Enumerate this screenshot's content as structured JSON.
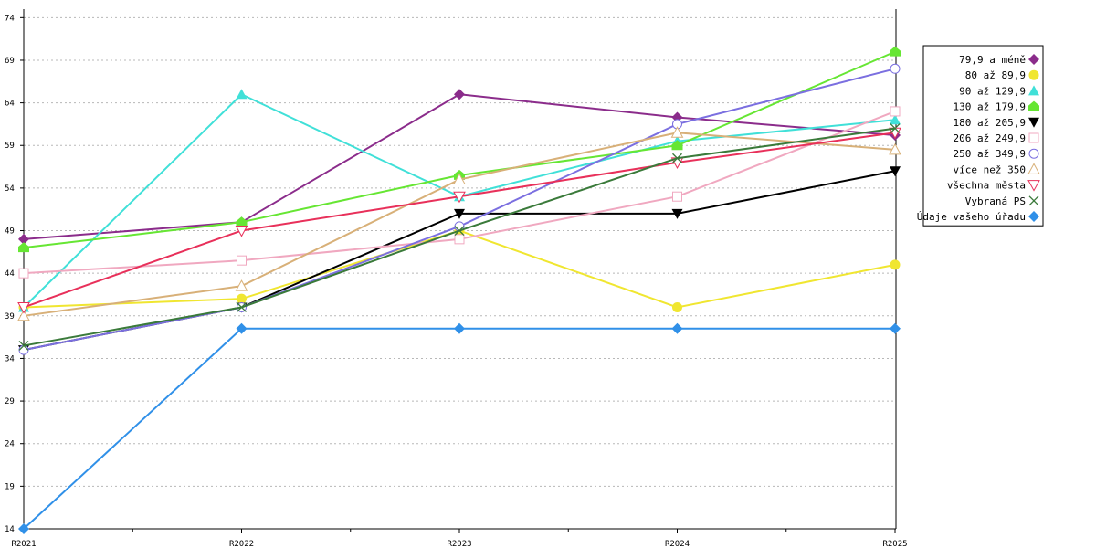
{
  "chart_data": {
    "type": "line",
    "categories": [
      "R2021",
      "R2022",
      "R2023",
      "R2024",
      "R2025"
    ],
    "yticks": [
      14,
      19,
      24,
      29,
      34,
      39,
      44,
      49,
      54,
      59,
      64,
      69,
      74
    ],
    "ylim": [
      14,
      75
    ],
    "grid": true,
    "legend_position": "right",
    "series": [
      {
        "name": "79,9 a méně",
        "color": "#8B2C8B",
        "marker": "diamond",
        "values": [
          48.0,
          50.0,
          65.0,
          62.3,
          60.2
        ]
      },
      {
        "name": "80 až 89,9",
        "color": "#F0E630",
        "marker": "circle",
        "values": [
          40.0,
          41.0,
          49.0,
          40.0,
          45.0
        ]
      },
      {
        "name": "90 až 129,9",
        "color": "#40E0D8",
        "marker": "triangle-up",
        "values": [
          40.0,
          65.0,
          53.0,
          59.5,
          62.0
        ]
      },
      {
        "name": "130 až 179,9",
        "color": "#66E633",
        "marker": "pentagon",
        "values": [
          47.0,
          50.0,
          55.5,
          59.0,
          70.0
        ]
      },
      {
        "name": "180 až 205,9",
        "color": "#000000",
        "marker": "triangle-down",
        "values": [
          35.0,
          40.0,
          51.0,
          51.0,
          56.0
        ]
      },
      {
        "name": "206 až 249,9",
        "color": "#F0A8C0",
        "marker": "square-open",
        "values": [
          44.0,
          45.5,
          48.0,
          53.0,
          63.0
        ]
      },
      {
        "name": "250 až 349,9",
        "color": "#7B6FE0",
        "marker": "circle-open",
        "values": [
          35.0,
          40.0,
          49.5,
          61.5,
          68.0
        ]
      },
      {
        "name": "více než 350",
        "color": "#D8B078",
        "marker": "triangle-up-open",
        "values": [
          39.0,
          42.5,
          55.0,
          60.5,
          58.5
        ]
      },
      {
        "name": "všechna města",
        "color": "#E8305A",
        "marker": "triangle-down-open",
        "values": [
          40.0,
          49.0,
          53.0,
          57.0,
          60.5
        ]
      },
      {
        "name": "Vybraná PS",
        "color": "#3A7A3A",
        "marker": "x",
        "values": [
          35.5,
          40.0,
          49.0,
          57.5,
          61.0
        ]
      },
      {
        "name": "Údaje vašeho úřadu",
        "color": "#3090E8",
        "marker": "diamond",
        "values": [
          14.0,
          37.5,
          37.5,
          37.5,
          37.5
        ]
      }
    ]
  }
}
